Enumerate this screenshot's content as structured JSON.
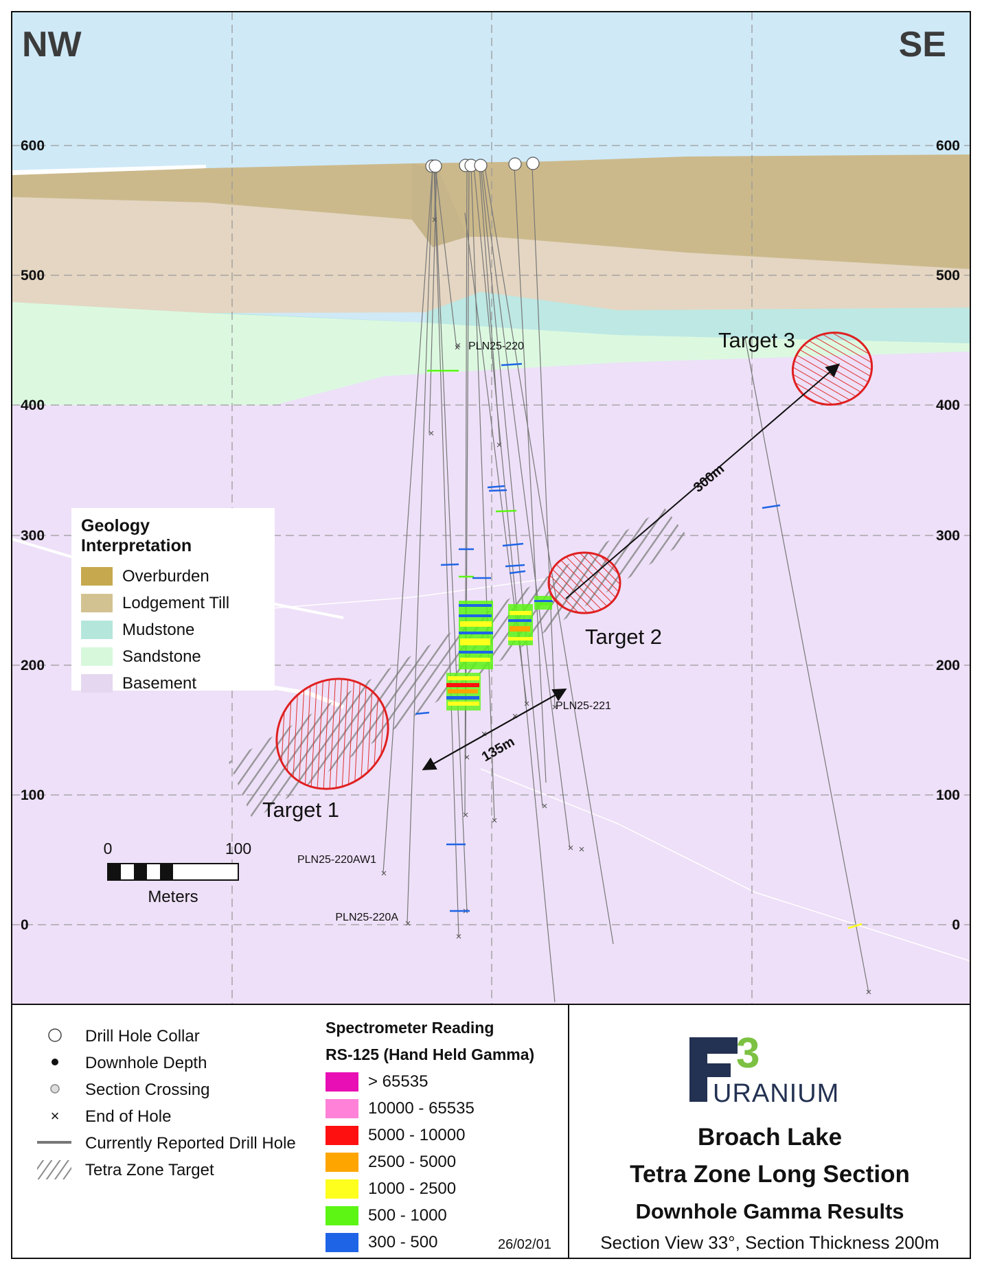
{
  "orientation": {
    "left": "NW",
    "right": "SE"
  },
  "elevation_ticks": [
    "600",
    "500",
    "400",
    "300",
    "200",
    "100",
    "0"
  ],
  "targets": {
    "t1": "Target 1",
    "t2": "Target 2",
    "t3": "Target 3"
  },
  "distances": {
    "d1": "135m",
    "d2": "300m"
  },
  "hole_labels": {
    "h220": "PLN25-220",
    "h221": "PLN25-221",
    "h220aw1": "PLN25-220AW1",
    "h220a": "PLN25-220A"
  },
  "scale": {
    "zero": "0",
    "hundred": "100",
    "unit": "Meters"
  },
  "geology_legend": {
    "title": "Geology Interpretation",
    "items": [
      {
        "label": "Overburden",
        "color": "#c6a84e"
      },
      {
        "label": "Lodgement Till",
        "color": "#d3c291"
      },
      {
        "label": "Mudstone",
        "color": "#b5e6dc"
      },
      {
        "label": "Sandstone",
        "color": "#d8f8dc"
      },
      {
        "label": "Basement",
        "color": "#e4d7ef"
      }
    ]
  },
  "symbol_legend": [
    {
      "label": "Drill Hole Collar",
      "icon": "collar-icon"
    },
    {
      "label": "Downhole Depth",
      "icon": "dot-icon"
    },
    {
      "label": "Section Crossing",
      "icon": "crossing-icon"
    },
    {
      "label": "End of Hole",
      "icon": "x-icon"
    },
    {
      "label": "Currently Reported Drill Hole",
      "icon": "line-icon"
    },
    {
      "label": "Tetra Zone Target",
      "icon": "hatch-icon"
    }
  ],
  "spectrometer": {
    "title1": "Spectrometer Reading",
    "title2": "RS-125 (Hand Held Gamma)",
    "items": [
      {
        "label": "> 65535",
        "color": "#e80fb4"
      },
      {
        "label": "10000 - 65535",
        "color": "#ff82d8"
      },
      {
        "label": "5000 - 10000",
        "color": "#ff1010"
      },
      {
        "label": "2500 - 5000",
        "color": "#ffa500"
      },
      {
        "label": "1000 - 2500",
        "color": "#ffff1e"
      },
      {
        "label": "500 - 1000",
        "color": "#5cf514"
      },
      {
        "label": "300 - 500",
        "color": "#1e64e6"
      }
    ]
  },
  "date": "26/02/01",
  "logo": {
    "mark": "3",
    "word": "URANIUM"
  },
  "title": {
    "line1": "Broach Lake",
    "line2": "Tetra Zone Long Section",
    "line3": "Downhole Gamma Results",
    "line4": "Section View 33°, Section Thickness 200m"
  }
}
